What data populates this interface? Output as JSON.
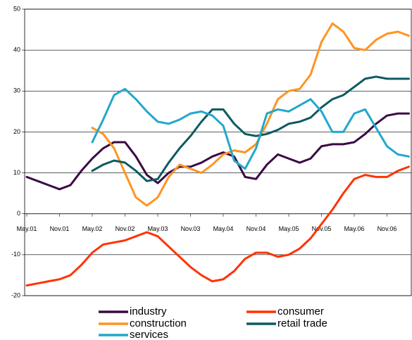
{
  "chart_data": {
    "type": "line",
    "categories": [
      "May.01",
      null,
      null,
      "Nov.01",
      null,
      null,
      "May.02",
      null,
      null,
      "Nov.02",
      null,
      null,
      "May.03",
      null,
      null,
      "Nov.03",
      null,
      null,
      "May.04",
      null,
      null,
      "Nov.04",
      null,
      null,
      "May.05",
      null,
      null,
      "Nov.05",
      null,
      null,
      "May.06",
      null,
      null,
      "Nov.06",
      null,
      null
    ],
    "series": [
      {
        "name": "industry",
        "color": "#3a0a44",
        "values": [
          9,
          8,
          7,
          6,
          7,
          10.5,
          13.5,
          16,
          17.5,
          17.5,
          14,
          9.5,
          7.5,
          10,
          11.5,
          11.5,
          12.5,
          14,
          15,
          14,
          9,
          8.5,
          12,
          14.5,
          13.5,
          12.5,
          13.5,
          16.5,
          17,
          17,
          17.5,
          19.5,
          22,
          24,
          24.5,
          24.5
        ]
      },
      {
        "name": "consumer",
        "color": "#ff3300",
        "values": [
          -17.5,
          -17,
          -16.5,
          -16,
          -15,
          -12.5,
          -9.5,
          -7.5,
          -7,
          -6.5,
          -5.5,
          -4.5,
          -5.5,
          -8,
          -10.5,
          -13,
          -15,
          -16.5,
          -16,
          -14,
          -11,
          -9.5,
          -9.5,
          -10.5,
          -10,
          -8.5,
          -6,
          -2.5,
          1,
          5,
          8.5,
          9.5,
          9,
          9,
          10.5,
          11.5
        ]
      },
      {
        "name": "construction",
        "color": "#ff9420",
        "values": [
          null,
          null,
          null,
          null,
          null,
          null,
          21,
          19.5,
          16,
          10,
          4,
          2,
          4,
          9,
          12,
          11,
          10,
          12,
          14.5,
          15.5,
          15,
          17,
          22,
          28,
          30,
          30.5,
          34,
          42,
          46.5,
          44.5,
          40.5,
          40,
          42.5,
          44,
          44.5,
          43.5
        ]
      },
      {
        "name": "retail trade",
        "color": "#0c5a62",
        "values": [
          null,
          null,
          null,
          null,
          null,
          null,
          10.5,
          12,
          13,
          12.5,
          10.5,
          8,
          8.5,
          12.5,
          16,
          19,
          22.5,
          25.5,
          25.5,
          22,
          19.5,
          19,
          19.5,
          20.5,
          22,
          22.5,
          23.5,
          26,
          28,
          29,
          31,
          33,
          33.5,
          33,
          33,
          33
        ]
      },
      {
        "name": "services",
        "color": "#22a8cc",
        "values": [
          null,
          null,
          null,
          null,
          null,
          null,
          17.5,
          23,
          29,
          30.5,
          28,
          25,
          22.5,
          22,
          23,
          24.5,
          25,
          24,
          21.5,
          13,
          11,
          16,
          24.5,
          25.5,
          25,
          26.5,
          28,
          25,
          20,
          20,
          24.5,
          25.5,
          21,
          16.5,
          14.5,
          14
        ]
      }
    ],
    "ylim": [
      -20,
      50
    ],
    "yticks": [
      -20,
      -10,
      0,
      10,
      20,
      30,
      40,
      50
    ],
    "grid": true
  }
}
